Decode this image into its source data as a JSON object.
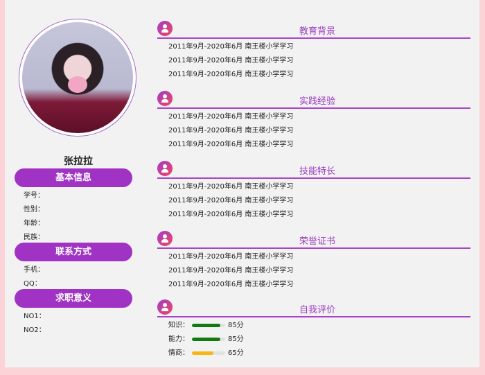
{
  "profile": {
    "name": "张拉拉"
  },
  "basic": {
    "title": "基本信息",
    "items": [
      "学号：",
      "性别：",
      "年龄：",
      "民族："
    ]
  },
  "contact": {
    "title": "联系方式",
    "items": [
      "手机：",
      "QQ："
    ]
  },
  "intent": {
    "title": "求职意义",
    "items": [
      "NO1：",
      "NO2："
    ]
  },
  "sections": [
    {
      "title": "教育背景",
      "rows": [
        "2011年9月-2020年6月 南王楼小学学习",
        "2011年9月-2020年6月 南王楼小学学习",
        "2011年9月-2020年6月 南王楼小学学习"
      ]
    },
    {
      "title": "实践经验",
      "rows": [
        "2011年9月-2020年6月 南王楼小学学习",
        "2011年9月-2020年6月 南王楼小学学习",
        "2011年9月-2020年6月 南王楼小学学习"
      ]
    },
    {
      "title": "技能特长",
      "rows": [
        "2011年9月-2020年6月 南王楼小学学习",
        "2011年9月-2020年6月 南王楼小学学习",
        "2011年9月-2020年6月 南王楼小学学习"
      ]
    },
    {
      "title": "荣誉证书",
      "rows": [
        "2011年9月-2020年6月 南王楼小学学习",
        "2011年9月-2020年6月 南王楼小学学习",
        "2011年9月-2020年6月 南王楼小学学习"
      ]
    }
  ],
  "evaluation": {
    "title": "自我评价",
    "skills": [
      {
        "label": "知识：",
        "percent": 85,
        "text": "85分",
        "color": "#107a10"
      },
      {
        "label": "能力：",
        "percent": 85,
        "text": "85分",
        "color": "#107a10"
      },
      {
        "label": "情商：",
        "percent": 65,
        "text": "65分",
        "color": "#f5b716"
      }
    ]
  },
  "colors": {
    "accent": "#a033c3",
    "background": "#fcd3d6"
  }
}
